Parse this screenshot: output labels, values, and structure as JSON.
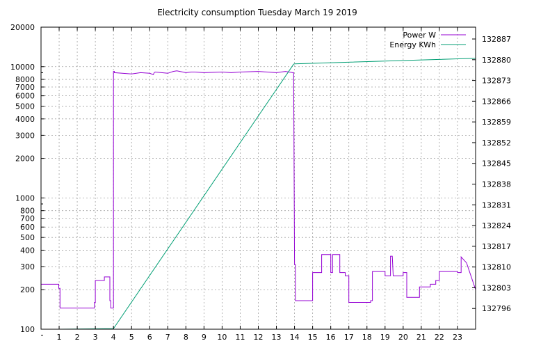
{
  "chart_data": {
    "type": "line",
    "title": "Electricity consumption Tuesday March 19 2019",
    "x_ticks": [
      "1",
      "2",
      "3",
      "4",
      "5",
      "6",
      "7",
      "8",
      "9",
      "10",
      "11",
      "12",
      "13",
      "14",
      "15",
      "16",
      "17",
      "18",
      "19",
      "20",
      "21",
      "22",
      "23"
    ],
    "xlim": [
      0,
      24
    ],
    "y_left": {
      "scale": "log",
      "ylim": [
        100,
        20000
      ],
      "ticks": [
        100,
        200,
        300,
        400,
        500,
        600,
        700,
        800,
        1000,
        2000,
        3000,
        4000,
        5000,
        6000,
        7000,
        8000,
        10000,
        20000
      ],
      "tick_labels": [
        "100",
        "200",
        "300",
        "400",
        "500",
        "600",
        "700",
        "800",
        "1000",
        "2000",
        "3000",
        "4000",
        "5000",
        "6000",
        "7000",
        "8000",
        "10000",
        "20000"
      ]
    },
    "y_right": {
      "scale": "linear",
      "ylim": [
        132789,
        132891
      ],
      "ticks": [
        132796,
        132803,
        132810,
        132817,
        132824,
        132831,
        132838,
        132845,
        132852,
        132859,
        132866,
        132873,
        132880,
        132887
      ],
      "tick_labels": [
        "132796",
        "132803",
        "132810",
        "132817",
        "132824",
        "132831",
        "132838",
        "132845",
        "132852",
        "132859",
        "132866",
        "132873",
        "132880",
        "132887"
      ]
    },
    "grid": true,
    "legend_position": "top-right",
    "series": [
      {
        "name": "Power W",
        "color": "#9400d3",
        "axis": "left",
        "x": [
          0,
          0.98,
          0.98,
          1.05,
          1.05,
          2.95,
          2.95,
          3.0,
          3.0,
          3.5,
          3.5,
          3.8,
          3.8,
          3.85,
          3.85,
          4.0,
          4.0,
          4.05,
          4.05,
          5.0,
          5.5,
          6.0,
          6.2,
          6.25,
          6.3,
          7.0,
          7.3,
          7.5,
          8.0,
          8.3,
          8.5,
          9.0,
          10.0,
          10.5,
          11.0,
          12.0,
          12.5,
          13.0,
          13.5,
          13.9,
          13.95,
          14.0,
          14.05,
          14.05,
          14.5,
          15.0,
          15.0,
          15.5,
          15.5,
          16.0,
          16.0,
          16.1,
          16.1,
          16.5,
          16.5,
          16.8,
          16.8,
          17.0,
          17.0,
          17.5,
          18.0,
          18.2,
          18.2,
          18.3,
          18.3,
          19.0,
          19.0,
          19.3,
          19.3,
          19.4,
          19.45,
          19.45,
          20.0,
          20.0,
          20.2,
          20.2,
          20.9,
          20.9,
          21.5,
          21.5,
          21.8,
          21.8,
          22.0,
          22.0,
          23.0,
          23.0,
          23.2,
          23.2,
          23.5,
          24.0
        ],
        "y": [
          220,
          220,
          205,
          205,
          145,
          145,
          160,
          160,
          235,
          235,
          250,
          250,
          165,
          165,
          145,
          145,
          9200,
          9200,
          9000,
          8800,
          9000,
          8900,
          8700,
          9000,
          9100,
          8900,
          9200,
          9300,
          9000,
          9100,
          9100,
          9000,
          9100,
          9000,
          9100,
          9200,
          9100,
          9000,
          9200,
          9000,
          9000,
          310,
          310,
          165,
          165,
          165,
          270,
          270,
          370,
          370,
          270,
          270,
          370,
          370,
          270,
          270,
          255,
          255,
          160,
          160,
          160,
          160,
          165,
          165,
          275,
          275,
          255,
          255,
          360,
          360,
          255,
          255,
          255,
          270,
          270,
          175,
          175,
          210,
          210,
          220,
          220,
          235,
          235,
          275,
          275,
          270,
          270,
          355,
          320,
          200
        ]
      },
      {
        "name": "Energy KWh",
        "color": "#009e73",
        "axis": "right",
        "x": [
          1.0,
          4.0,
          13.95,
          14.0,
          24.0
        ],
        "y": [
          132789,
          132789.2,
          132878.5,
          132878.6,
          132880.5
        ]
      }
    ]
  }
}
